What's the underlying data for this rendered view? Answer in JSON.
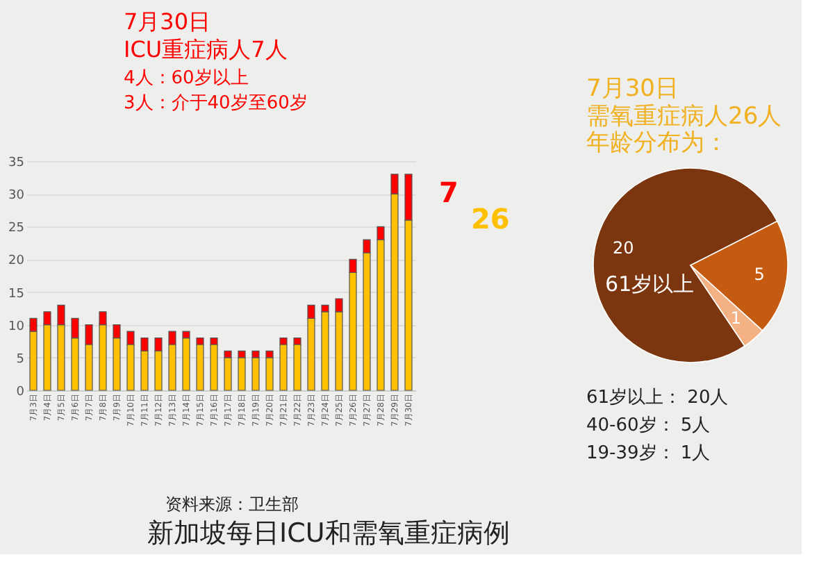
{
  "chart_data": [
    {
      "type": "bar",
      "title": "新加坡每日ICU和需氧重症病例",
      "stacked": true,
      "categories": [
        "7月3日",
        "7月4日",
        "7月5日",
        "7月6日",
        "7月7日",
        "7月8日",
        "7月9日",
        "7月10日",
        "7月11日",
        "7月12日",
        "7月13日",
        "7月14日",
        "7月15日",
        "7月16日",
        "7月17日",
        "7月18日",
        "7月19日",
        "7月20日",
        "7月21日",
        "7月22日",
        "7月23日",
        "7月24日",
        "7月25日",
        "7月26日",
        "7月27日",
        "7月28日",
        "7月29日",
        "7月30日"
      ],
      "series": [
        {
          "color": "#ffc000",
          "values": [
            9,
            10,
            10,
            8,
            7,
            10,
            8,
            7,
            6,
            6,
            7,
            8,
            7,
            7,
            5,
            5,
            5,
            5,
            7,
            7,
            11,
            12,
            12,
            18,
            21,
            23,
            30,
            26
          ]
        },
        {
          "color": "#ff0000",
          "values": [
            2,
            2,
            3,
            3,
            3,
            2,
            2,
            2,
            2,
            2,
            2,
            1,
            1,
            1,
            1,
            1,
            1,
            1,
            1,
            1,
            2,
            1,
            2,
            2,
            2,
            2,
            3,
            7
          ]
        }
      ],
      "ylim": [
        0,
        35
      ],
      "yticks": [
        0,
        5,
        10,
        15,
        20,
        25,
        30,
        35
      ],
      "grid": "y",
      "legend": false,
      "annotations": [
        "7月30日",
        "ICU重症病人7人",
        "4人：60岁以上",
        "3人：介于40岁至60岁",
        {
          "text": "7",
          "x": "7月30日",
          "y": 30
        },
        {
          "text": "26",
          "x": "7月30日",
          "y": 26
        },
        "资料来源：卫生部"
      ]
    },
    {
      "type": "pie",
      "title": "7月30日",
      "subtitle": "需氧重症病人26人年龄分布为：",
      "categories": [
        "61岁以上",
        null,
        null
      ],
      "values": [
        20,
        5,
        1
      ],
      "colors": [
        "#7b3610",
        "#c55a11",
        "#f4b183"
      ],
      "data_labels": true,
      "legend": false,
      "annotations": [
        "61岁以上：  20人",
        "40-60岁：    5人",
        "19-39岁：    1人"
      ]
    }
  ]
}
